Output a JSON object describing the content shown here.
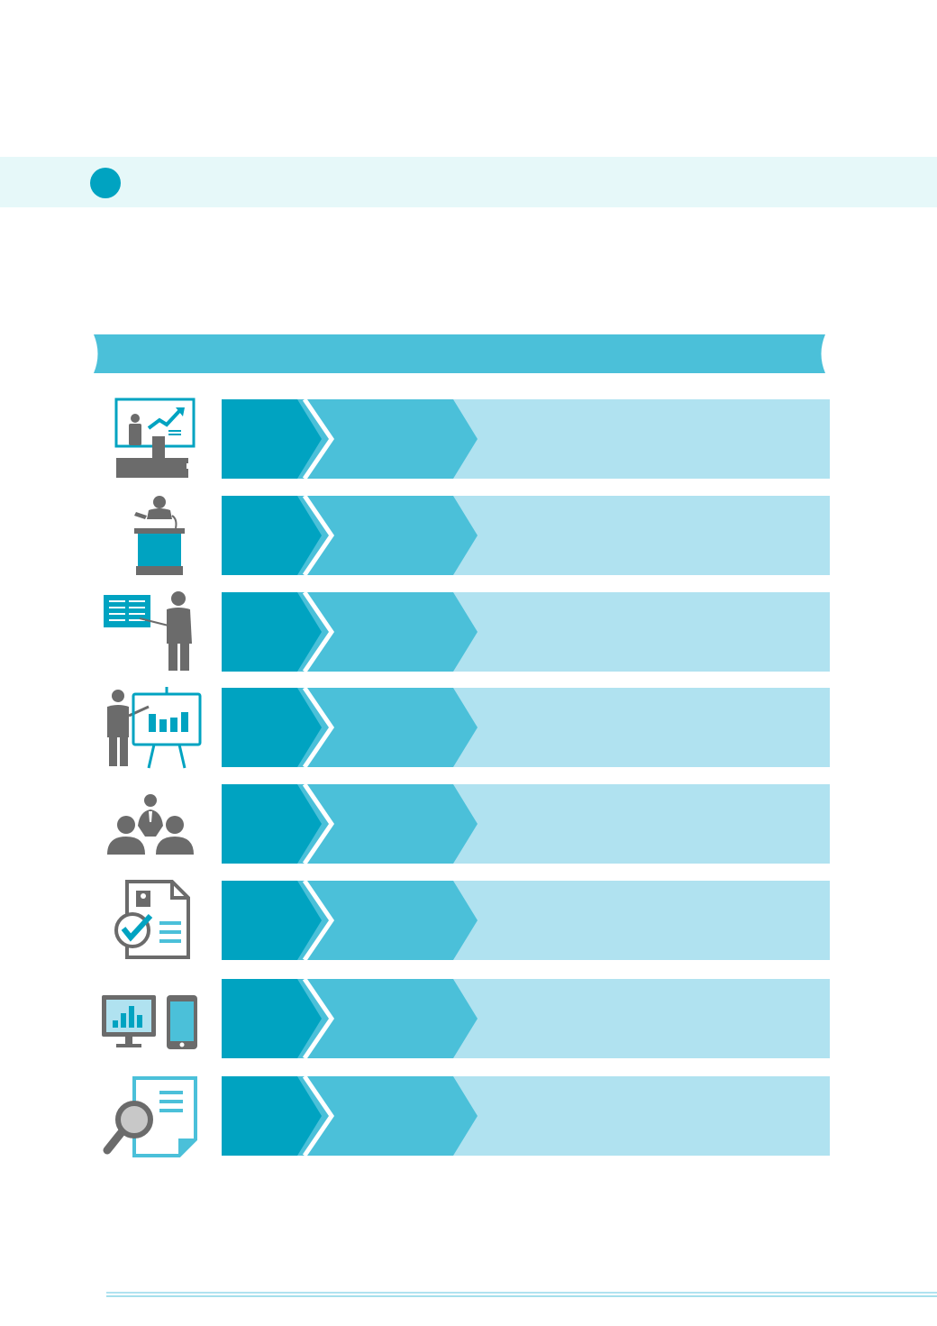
{
  "colors": {
    "band_bg": "#e6f8f9",
    "primary": "#00a3c1",
    "secondary": "#4bc0d9",
    "light": "#b0e2f0",
    "icon_gray": "#6b6b6b"
  },
  "section": {
    "marker": "section-dot"
  },
  "rows": [
    {
      "icon": "presentation-podium-stage-icon"
    },
    {
      "icon": "speaker-at-lectern-icon"
    },
    {
      "icon": "checklist-presenter-icon"
    },
    {
      "icon": "easel-chart-presenter-icon"
    },
    {
      "icon": "group-leader-icon"
    },
    {
      "icon": "approved-resume-document-icon"
    },
    {
      "icon": "monitor-and-phone-icon"
    },
    {
      "icon": "magnifier-document-icon"
    }
  ]
}
